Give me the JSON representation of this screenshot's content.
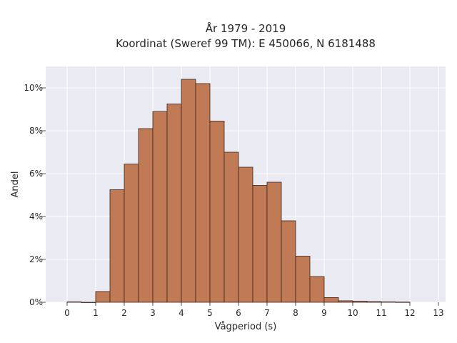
{
  "chart_data": {
    "type": "bar",
    "title_line1": "År 1979 - 2019",
    "title_line2": "Koordinat (Sweref 99 TM): E 450066, N 6181488",
    "xlabel": "Vågperiod (s)",
    "ylabel": "Andel",
    "xlim": [
      -0.75,
      13.25
    ],
    "ylim": [
      0,
      11
    ],
    "grid": true,
    "bin_width": 0.5,
    "x_ticks": [
      0,
      1,
      2,
      3,
      4,
      5,
      6,
      7,
      8,
      9,
      10,
      11,
      12,
      13
    ],
    "x_tick_labels": [
      "0",
      "1",
      "2",
      "3",
      "4",
      "5",
      "6",
      "7",
      "8",
      "9",
      "10",
      "11",
      "12",
      "13"
    ],
    "y_ticks": [
      0,
      2,
      4,
      6,
      8,
      10
    ],
    "y_tick_labels": [
      "0%",
      "2%",
      "4%",
      "6%",
      "8%",
      "10%"
    ],
    "bins": [
      {
        "start": 0.0,
        "value": 0.02
      },
      {
        "start": 0.5,
        "value": 0.0
      },
      {
        "start": 1.0,
        "value": 0.5
      },
      {
        "start": 1.5,
        "value": 5.25
      },
      {
        "start": 2.0,
        "value": 6.45
      },
      {
        "start": 2.5,
        "value": 8.1
      },
      {
        "start": 3.0,
        "value": 8.9
      },
      {
        "start": 3.5,
        "value": 9.25
      },
      {
        "start": 4.0,
        "value": 10.4
      },
      {
        "start": 4.5,
        "value": 10.2
      },
      {
        "start": 5.0,
        "value": 8.45
      },
      {
        "start": 5.5,
        "value": 7.0
      },
      {
        "start": 6.0,
        "value": 6.3
      },
      {
        "start": 6.5,
        "value": 5.45
      },
      {
        "start": 7.0,
        "value": 5.6
      },
      {
        "start": 7.5,
        "value": 3.8
      },
      {
        "start": 8.0,
        "value": 2.15
      },
      {
        "start": 8.5,
        "value": 1.2
      },
      {
        "start": 9.0,
        "value": 0.22
      },
      {
        "start": 9.5,
        "value": 0.07
      },
      {
        "start": 10.0,
        "value": 0.05
      },
      {
        "start": 10.5,
        "value": 0.03
      },
      {
        "start": 11.0,
        "value": 0.02
      },
      {
        "start": 11.5,
        "value": 0.01
      }
    ],
    "colors": {
      "bar": "#c07a55",
      "edge": "#3b2418",
      "plot_bg": "#eaeaf2",
      "grid": "#ffffff"
    }
  }
}
